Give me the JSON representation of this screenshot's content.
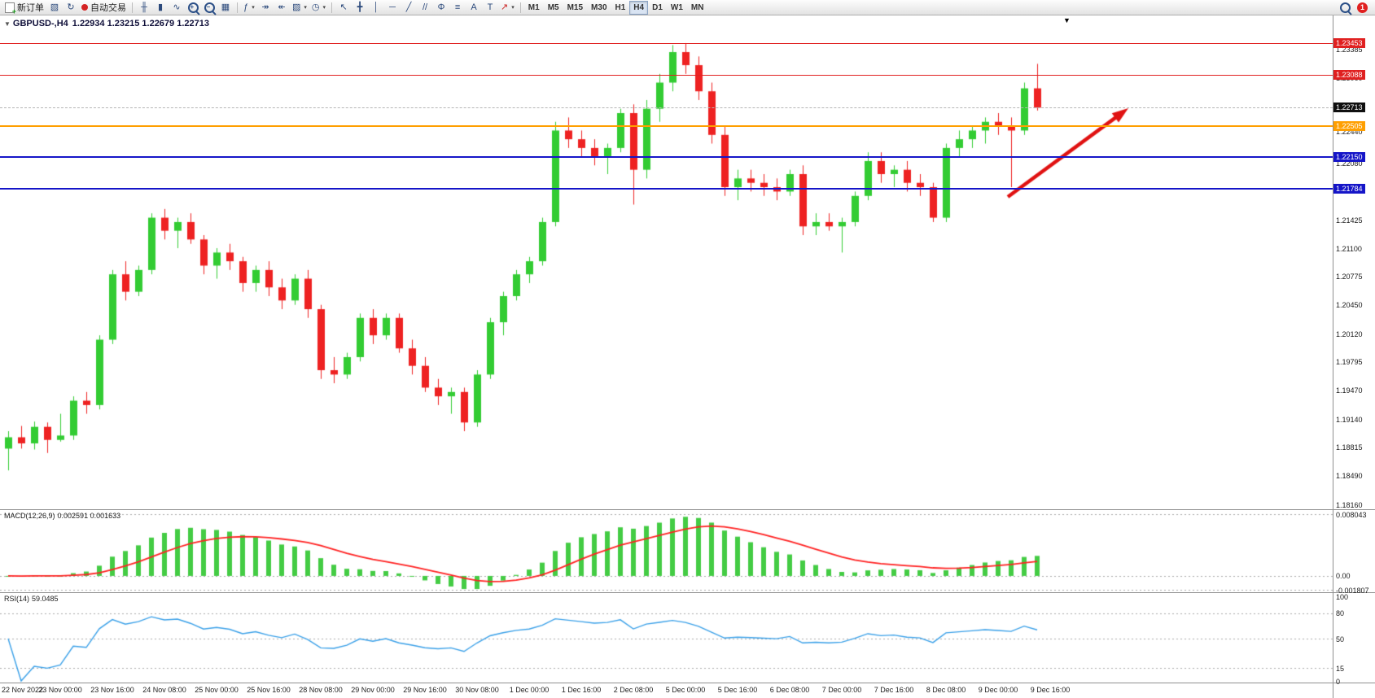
{
  "toolbar": {
    "new_order": {
      "label": "新订单"
    },
    "autotrading": {
      "label": "自动交易"
    },
    "window_tools": [
      {
        "name": "profiles",
        "glyph": "▧"
      },
      {
        "name": "refresh",
        "glyph": "↻"
      }
    ],
    "chart_tools": [
      {
        "name": "bar-chart",
        "glyph": "╫"
      },
      {
        "name": "candlestick-chart",
        "glyph": "▮"
      },
      {
        "name": "line-chart",
        "glyph": "∿"
      },
      {
        "name": "zoom-in",
        "glyph": "mag+"
      },
      {
        "name": "zoom-out",
        "glyph": "mag-"
      },
      {
        "name": "tile-windows",
        "glyph": "▦"
      }
    ],
    "chart_options": [
      {
        "name": "indicators",
        "glyph": "ƒ",
        "dropdown": true
      },
      {
        "name": "auto-scroll",
        "glyph": "↠"
      },
      {
        "name": "chart-shift",
        "glyph": "↞"
      },
      {
        "name": "templates",
        "glyph": "▨",
        "dropdown": true
      },
      {
        "name": "period-clock",
        "glyph": "◷",
        "dropdown": true
      }
    ],
    "drawing_tools": [
      {
        "name": "cursor",
        "glyph": "↖"
      },
      {
        "name": "crosshair",
        "glyph": "╋"
      },
      {
        "name": "vertical-line",
        "glyph": "│"
      },
      {
        "name": "horizontal-line",
        "glyph": "─"
      },
      {
        "name": "trendline",
        "glyph": "╱"
      },
      {
        "name": "equidistant-channel",
        "glyph": "//"
      },
      {
        "name": "fibonacci",
        "glyph": "Φ"
      },
      {
        "name": "shapes",
        "glyph": "≡"
      },
      {
        "name": "text",
        "glyph": "A"
      },
      {
        "name": "text-label",
        "glyph": "T"
      },
      {
        "name": "arrows",
        "glyph": "↗",
        "dropdown": true,
        "color": "#cc2222"
      }
    ],
    "timeframes": {
      "items": [
        "M1",
        "M5",
        "M15",
        "M30",
        "H1",
        "H4",
        "D1",
        "W1",
        "MN"
      ],
      "active": "H4"
    },
    "right": {
      "badge_count": "1"
    }
  },
  "icons": {
    "collapse": "▼",
    "shift_marker": "▼",
    "dropdown_caret": "▾"
  },
  "chart": {
    "symbol_title": "GBPUSD-,H4",
    "ohlc": "1.22934 1.23215 1.22679 1.22713"
  },
  "price_axis": {
    "ticks": [
      "1.23385",
      "1.23060",
      "1.22440",
      "1.22080",
      "1.21755",
      "1.21425",
      "1.21100",
      "1.20775",
      "1.20450",
      "1.20120",
      "1.19795",
      "1.19470",
      "1.19140",
      "1.18815",
      "1.18490",
      "1.18160"
    ],
    "tags": [
      {
        "label": "1.23453",
        "bg": "#e02020"
      },
      {
        "label": "1.23088",
        "bg": "#e02020"
      },
      {
        "label": "1.22713",
        "bg": "#101010"
      },
      {
        "label": "1.22505",
        "bg": "#ff9f00"
      },
      {
        "label": "1.22150",
        "bg": "#1515c8"
      },
      {
        "label": "1.21784",
        "bg": "#1515c8"
      }
    ]
  },
  "levels": [
    {
      "price": 1.23453,
      "color": "#e02020",
      "thickness": 1
    },
    {
      "price": 1.23088,
      "color": "#e02020",
      "thickness": 1
    },
    {
      "price": 1.22505,
      "color": "#ff9f00",
      "thickness": 2
    },
    {
      "price": 1.2215,
      "color": "#1515c8",
      "thickness": 2
    },
    {
      "price": 1.21784,
      "color": "#1515c8",
      "thickness": 2
    }
  ],
  "bid_line": {
    "price": 1.22713,
    "color": "#b5b5b5"
  },
  "x_axis": {
    "labels": [
      "22 Nov 2022",
      "23 Nov 00:00",
      "23 Nov 16:00",
      "24 Nov 08:00",
      "25 Nov 00:00",
      "25 Nov 16:00",
      "28 Nov 08:00",
      "29 Nov 00:00",
      "29 Nov 16:00",
      "30 Nov 08:00",
      "1 Dec 00:00",
      "1 Dec 16:00",
      "2 Dec 08:00",
      "5 Dec 00:00",
      "5 Dec 16:00",
      "6 Dec 08:00",
      "7 Dec 00:00",
      "7 Dec 16:00",
      "8 Dec 08:00",
      "9 Dec 00:00",
      "9 Dec 16:00"
    ]
  },
  "macd_panel": {
    "label": "MACD(12,26,9)",
    "values": "0.002591 0.001633",
    "axis_labels": [
      "0.008043",
      "0.00",
      "-0.001807"
    ],
    "axis_values": [
      0.008043,
      0,
      -0.001807
    ]
  },
  "rsi_panel": {
    "label": "RSI(14)",
    "value": "59.0485",
    "axis_labels": [
      "100",
      "80",
      "50",
      "15",
      "0"
    ],
    "axis_values": [
      100,
      80,
      50,
      15,
      0
    ],
    "level_lines": [
      80,
      50,
      15
    ]
  },
  "annotation_arrow": {
    "from": [
      1238,
      242
    ],
    "to": [
      1386,
      133
    ],
    "color": "#e01212"
  },
  "chart_data": {
    "type": "candlestick",
    "symbol": "GBPUSD",
    "timeframe": "H4",
    "title": "GBPUSD-,H4",
    "last_bar_ohlc": {
      "open": 1.22934,
      "high": 1.23215,
      "low": 1.22679,
      "close": 1.22713
    },
    "ylim": [
      1.1816,
      1.2365
    ],
    "colors": {
      "up": "#33cc33",
      "down": "#ee2222",
      "macd_hist": "#44cc44",
      "macd_signal": "#ff2222",
      "rsi": "#3aa0e8"
    },
    "indicators": [
      {
        "name": "MACD",
        "params": [
          12,
          26,
          9
        ],
        "current": [
          0.002591,
          0.001633
        ],
        "range": [
          -0.001807,
          0.008043
        ]
      },
      {
        "name": "RSI",
        "params": [
          14
        ],
        "current": 59.0485,
        "range": [
          0,
          100
        ]
      }
    ],
    "candles": [
      [
        1.188,
        1.19,
        1.1855,
        1.1893
      ],
      [
        1.1893,
        1.1906,
        1.188,
        1.1886
      ],
      [
        1.1886,
        1.1911,
        1.1879,
        1.1905
      ],
      [
        1.1905,
        1.191,
        1.1875,
        1.189
      ],
      [
        1.189,
        1.192,
        1.1888,
        1.1895
      ],
      [
        1.1895,
        1.194,
        1.189,
        1.1935
      ],
      [
        1.1935,
        1.1945,
        1.192,
        1.193
      ],
      [
        1.193,
        1.201,
        1.1925,
        1.2005
      ],
      [
        1.2005,
        1.2085,
        1.2,
        1.208
      ],
      [
        1.208,
        1.2095,
        1.205,
        1.206
      ],
      [
        1.206,
        1.209,
        1.2055,
        1.2085
      ],
      [
        1.2085,
        1.215,
        1.208,
        1.2145
      ],
      [
        1.2145,
        1.2155,
        1.212,
        1.213
      ],
      [
        1.213,
        1.2145,
        1.211,
        1.214
      ],
      [
        1.214,
        1.215,
        1.2115,
        1.212
      ],
      [
        1.212,
        1.2125,
        1.208,
        1.209
      ],
      [
        1.209,
        1.211,
        1.2075,
        1.2105
      ],
      [
        1.2105,
        1.2115,
        1.2085,
        1.2095
      ],
      [
        1.2095,
        1.21,
        1.206,
        1.207
      ],
      [
        1.207,
        1.209,
        1.206,
        1.2085
      ],
      [
        1.2085,
        1.2095,
        1.2055,
        1.2065
      ],
      [
        1.2065,
        1.2075,
        1.204,
        1.205
      ],
      [
        1.205,
        1.208,
        1.2045,
        1.2075
      ],
      [
        1.2075,
        1.2085,
        1.203,
        1.204
      ],
      [
        1.204,
        1.2045,
        1.196,
        1.197
      ],
      [
        1.197,
        1.1985,
        1.1955,
        1.1965
      ],
      [
        1.1965,
        1.199,
        1.196,
        1.1985
      ],
      [
        1.1985,
        1.2035,
        1.198,
        1.203
      ],
      [
        1.203,
        1.204,
        1.2,
        1.201
      ],
      [
        1.201,
        1.2035,
        1.2005,
        1.203
      ],
      [
        1.203,
        1.2035,
        1.199,
        1.1995
      ],
      [
        1.1995,
        1.2005,
        1.1965,
        1.1975
      ],
      [
        1.1975,
        1.1985,
        1.1945,
        1.195
      ],
      [
        1.195,
        1.196,
        1.193,
        1.194
      ],
      [
        1.194,
        1.195,
        1.192,
        1.1945
      ],
      [
        1.1945,
        1.195,
        1.19,
        1.191
      ],
      [
        1.191,
        1.197,
        1.1905,
        1.1965
      ],
      [
        1.1965,
        1.203,
        1.196,
        1.2025
      ],
      [
        1.2025,
        1.206,
        1.201,
        1.2055
      ],
      [
        1.2055,
        1.2085,
        1.205,
        1.208
      ],
      [
        1.208,
        1.21,
        1.207,
        1.2095
      ],
      [
        1.2095,
        1.2145,
        1.209,
        1.214
      ],
      [
        1.214,
        1.2255,
        1.2135,
        1.2245
      ],
      [
        1.2245,
        1.226,
        1.2225,
        1.2235
      ],
      [
        1.2235,
        1.2245,
        1.2215,
        1.2225
      ],
      [
        1.2225,
        1.2235,
        1.2205,
        1.2215
      ],
      [
        1.2215,
        1.223,
        1.2195,
        1.2225
      ],
      [
        1.2225,
        1.227,
        1.222,
        1.2265
      ],
      [
        1.2265,
        1.2275,
        1.216,
        1.22
      ],
      [
        1.22,
        1.228,
        1.219,
        1.227
      ],
      [
        1.227,
        1.231,
        1.2255,
        1.23
      ],
      [
        1.23,
        1.2343,
        1.229,
        1.2335
      ],
      [
        1.2335,
        1.2345,
        1.231,
        1.232
      ],
      [
        1.232,
        1.233,
        1.228,
        1.229
      ],
      [
        1.229,
        1.23,
        1.223,
        1.224
      ],
      [
        1.224,
        1.225,
        1.217,
        1.218
      ],
      [
        1.218,
        1.22,
        1.2165,
        1.219
      ],
      [
        1.219,
        1.22,
        1.2175,
        1.2185
      ],
      [
        1.2185,
        1.2195,
        1.217,
        1.218
      ],
      [
        1.218,
        1.219,
        1.2165,
        1.2175
      ],
      [
        1.2175,
        1.22,
        1.217,
        1.2195
      ],
      [
        1.2195,
        1.2205,
        1.2125,
        1.2135
      ],
      [
        1.2135,
        1.215,
        1.2125,
        1.214
      ],
      [
        1.214,
        1.215,
        1.213,
        1.2135
      ],
      [
        1.2135,
        1.2145,
        1.2105,
        1.214
      ],
      [
        1.214,
        1.2175,
        1.2135,
        1.217
      ],
      [
        1.217,
        1.222,
        1.2165,
        1.221
      ],
      [
        1.221,
        1.222,
        1.2185,
        1.2195
      ],
      [
        1.2195,
        1.2205,
        1.218,
        1.22
      ],
      [
        1.22,
        1.221,
        1.2175,
        1.2185
      ],
      [
        1.2185,
        1.2195,
        1.217,
        1.218
      ],
      [
        1.218,
        1.2185,
        1.214,
        1.2145
      ],
      [
        1.2145,
        1.223,
        1.214,
        1.2225
      ],
      [
        1.2225,
        1.2245,
        1.2215,
        1.2235
      ],
      [
        1.2235,
        1.225,
        1.2225,
        1.2245
      ],
      [
        1.2245,
        1.226,
        1.223,
        1.2255
      ],
      [
        1.2255,
        1.2265,
        1.224,
        1.225
      ],
      [
        1.225,
        1.226,
        1.218,
        1.2245
      ],
      [
        1.2245,
        1.23,
        1.224,
        1.22934
      ],
      [
        1.22934,
        1.23215,
        1.22679,
        1.22713
      ]
    ]
  }
}
